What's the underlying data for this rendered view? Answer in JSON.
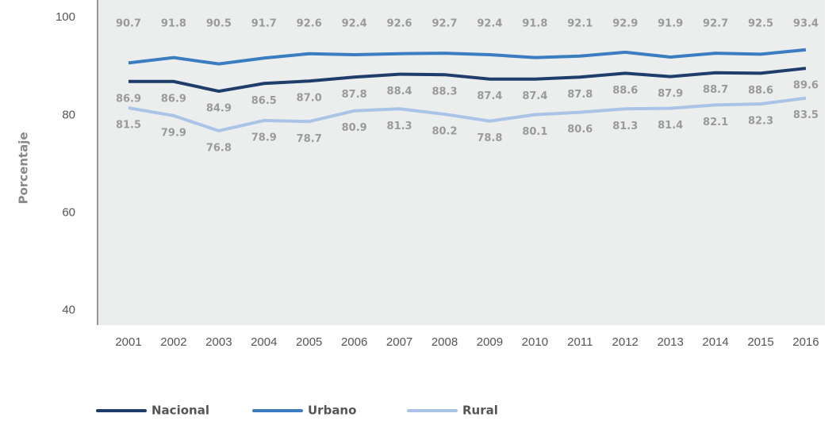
{
  "chart_data": {
    "type": "line",
    "y_label": "Porcentaje",
    "categories": [
      "2001",
      "2002",
      "2003",
      "2004",
      "2005",
      "2006",
      "2007",
      "2008",
      "2009",
      "2010",
      "2011",
      "2012",
      "2013",
      "2014",
      "2015",
      "2016"
    ],
    "series": [
      {
        "name": "Nacional",
        "color": "#1f3d6b",
        "values": [
          86.9,
          86.9,
          84.9,
          86.5,
          87.0,
          87.8,
          88.4,
          88.3,
          87.4,
          87.4,
          87.8,
          88.6,
          87.9,
          88.7,
          88.6,
          89.6
        ],
        "value_labels": [
          "86.9",
          "86.9",
          "84.9",
          "86.5",
          "87.0",
          "87.8",
          "88.4",
          "88.3",
          "87.4",
          "87.4",
          "87.8",
          "88.6",
          "87.9",
          "88.7",
          "88.6",
          "89.6"
        ]
      },
      {
        "name": "Urbano",
        "color": "#3a7dc0",
        "values": [
          90.7,
          91.8,
          90.5,
          91.7,
          92.6,
          92.4,
          92.6,
          92.7,
          92.4,
          91.8,
          92.1,
          92.9,
          91.9,
          92.7,
          92.5,
          93.4
        ],
        "value_labels": [
          "90.7",
          "91.8",
          "90.5",
          "91.7",
          "92.6",
          "92.4",
          "92.6",
          "92.7",
          "92.4",
          "91.8",
          "92.1",
          "92.9",
          "91.9",
          "92.7",
          "92.5",
          "93.4"
        ]
      },
      {
        "name": "Rural",
        "color": "#a9c4e6",
        "values": [
          81.5,
          79.9,
          76.8,
          78.9,
          78.7,
          80.9,
          81.3,
          80.2,
          78.8,
          80.1,
          80.6,
          81.3,
          81.4,
          82.1,
          82.3,
          83.5
        ],
        "value_labels": [
          "81.5",
          "79.9",
          "76.8",
          "78.9",
          "78.7",
          "80.9",
          "81.3",
          "80.2",
          "78.8",
          "80.1",
          "80.6",
          "81.3",
          "81.4",
          "82.1",
          "82.3",
          "83.5"
        ]
      }
    ],
    "ylim": [
      37,
      103.6
    ],
    "yticks": [
      40,
      60,
      80,
      100
    ],
    "grid": false,
    "legend": "bottom"
  }
}
